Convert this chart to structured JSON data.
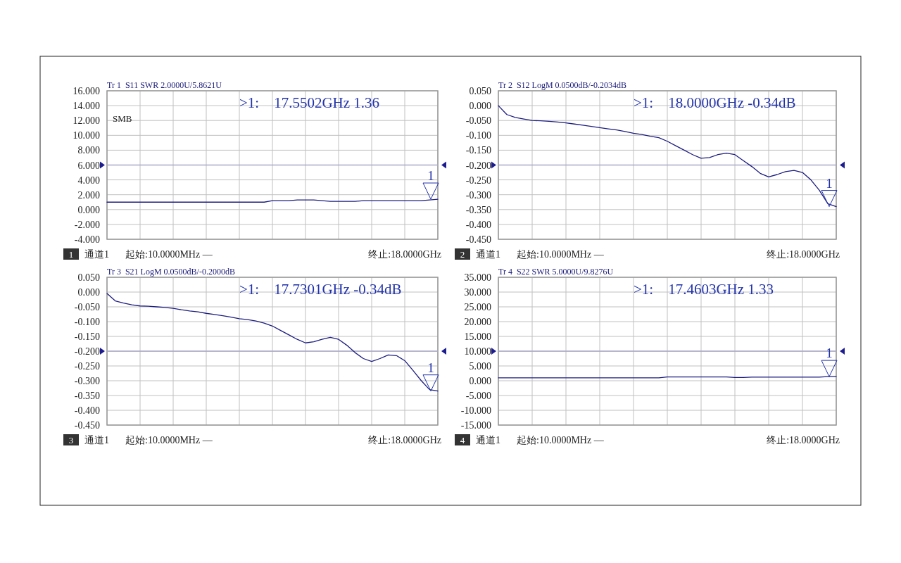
{
  "chart_data": [
    {
      "type": "line",
      "title": "Tr 1  S11 SWR 2.0000U/5.8621U",
      "grid": true,
      "categories": [
        null,
        null,
        null,
        null,
        null,
        null,
        null,
        null,
        null,
        null,
        null,
        null,
        null,
        null,
        null,
        null,
        null,
        null,
        null,
        null,
        null,
        null,
        null,
        null,
        null,
        null,
        null,
        null,
        null,
        null,
        null,
        null,
        null,
        null,
        null,
        null,
        null,
        null,
        null,
        null,
        null
      ],
      "series": [
        {
          "color": "#1c1c80",
          "values": [
            1.0,
            1.0,
            1.0,
            1.0,
            1.0,
            1.0,
            1.0,
            1.0,
            1.0,
            1.0,
            1.0,
            1.0,
            1.0,
            1.0,
            1.0,
            1.0,
            1.0,
            1.0,
            1.0,
            1.0,
            1.2,
            1.2,
            1.2,
            1.3,
            1.3,
            1.3,
            1.2,
            1.1,
            1.1,
            1.1,
            1.1,
            1.2,
            1.2,
            1.2,
            1.2,
            1.2,
            1.2,
            1.2,
            1.2,
            1.3,
            1.4
          ]
        }
      ],
      "ylim": [
        -4,
        16
      ],
      "yticks": [
        {
          "value": -4,
          "label": "-4.000"
        },
        {
          "value": -2,
          "label": "-2.000"
        },
        {
          "value": 0,
          "label": "0.000"
        },
        {
          "value": 2,
          "label": "2.000"
        },
        {
          "value": 4,
          "label": "4.000"
        },
        {
          "value": 6,
          "label": "6.000"
        },
        {
          "value": 8,
          "label": "8.000"
        },
        {
          "value": 10,
          "label": "10.000"
        },
        {
          "value": 12,
          "label": "12.000"
        },
        {
          "value": 14,
          "label": "14.000"
        },
        {
          "value": 16,
          "label": "16.000"
        }
      ],
      "ref_lines": [
        {
          "axis": "y",
          "value": 6,
          "color": "#a8a8c8"
        }
      ],
      "annotations": [
        ">1:    17.5502GHz 1.36",
        "1",
        "通道1",
        "起始:10.0000MHz —",
        "终止:18.0000GHz",
        "1",
        "SMB"
      ]
    },
    {
      "type": "line",
      "title": "Tr 2  S12 LogM 0.0500dB/-0.2034dB",
      "grid": true,
      "categories": [
        null,
        null,
        null,
        null,
        null,
        null,
        null,
        null,
        null,
        null,
        null,
        null,
        null,
        null,
        null,
        null,
        null,
        null,
        null,
        null,
        null,
        null,
        null,
        null,
        null,
        null,
        null,
        null,
        null,
        null,
        null,
        null,
        null,
        null,
        null,
        null,
        null,
        null,
        null,
        null,
        null
      ],
      "series": [
        {
          "color": "#1c1c80",
          "values": [
            0.0,
            -0.03,
            -0.04,
            -0.045,
            -0.05,
            -0.051,
            -0.053,
            -0.055,
            -0.058,
            -0.062,
            -0.066,
            -0.07,
            -0.074,
            -0.078,
            -0.082,
            -0.087,
            -0.093,
            -0.097,
            -0.103,
            -0.108,
            -0.12,
            -0.135,
            -0.15,
            -0.165,
            -0.177,
            -0.175,
            -0.165,
            -0.16,
            -0.165,
            -0.185,
            -0.205,
            -0.228,
            -0.24,
            -0.232,
            -0.222,
            -0.218,
            -0.225,
            -0.25,
            -0.285,
            -0.33,
            -0.34
          ]
        }
      ],
      "ylim": [
        -0.45,
        0.05
      ],
      "yticks": [
        {
          "value": -0.45,
          "label": "-0.450"
        },
        {
          "value": -0.4,
          "label": "-0.400"
        },
        {
          "value": -0.35,
          "label": "-0.350"
        },
        {
          "value": -0.3,
          "label": "-0.300"
        },
        {
          "value": -0.25,
          "label": "-0.250"
        },
        {
          "value": -0.2,
          "label": "-0.200"
        },
        {
          "value": -0.15,
          "label": "-0.150"
        },
        {
          "value": -0.1,
          "label": "-0.100"
        },
        {
          "value": -0.05,
          "label": "-0.050"
        },
        {
          "value": 0,
          "label": "0.000"
        },
        {
          "value": 0.05,
          "label": "0.050"
        }
      ],
      "ref_lines": [
        {
          "axis": "y",
          "value": -0.2,
          "color": "#a8a8c8"
        }
      ],
      "annotations": [
        ">1:    18.0000GHz -0.34dB",
        "2",
        "通道1",
        "起始:10.0000MHz —",
        "终止:18.0000GHz",
        "1"
      ]
    },
    {
      "type": "line",
      "title": "Tr 3  S21 LogM 0.0500dB/-0.2000dB",
      "grid": true,
      "categories": [
        null,
        null,
        null,
        null,
        null,
        null,
        null,
        null,
        null,
        null,
        null,
        null,
        null,
        null,
        null,
        null,
        null,
        null,
        null,
        null,
        null,
        null,
        null,
        null,
        null,
        null,
        null,
        null,
        null,
        null,
        null,
        null,
        null,
        null,
        null,
        null,
        null,
        null,
        null,
        null,
        null
      ],
      "series": [
        {
          "color": "#1c1c80",
          "values": [
            -0.005,
            -0.03,
            -0.037,
            -0.043,
            -0.047,
            -0.048,
            -0.05,
            -0.052,
            -0.055,
            -0.06,
            -0.064,
            -0.067,
            -0.072,
            -0.076,
            -0.08,
            -0.085,
            -0.09,
            -0.093,
            -0.098,
            -0.105,
            -0.115,
            -0.13,
            -0.145,
            -0.16,
            -0.172,
            -0.168,
            -0.16,
            -0.153,
            -0.16,
            -0.18,
            -0.205,
            -0.225,
            -0.235,
            -0.225,
            -0.213,
            -0.215,
            -0.232,
            -0.265,
            -0.3,
            -0.33,
            -0.335
          ]
        }
      ],
      "ylim": [
        -0.45,
        0.05
      ],
      "yticks": [
        {
          "value": -0.45,
          "label": "-0.450"
        },
        {
          "value": -0.4,
          "label": "-0.400"
        },
        {
          "value": -0.35,
          "label": "-0.350"
        },
        {
          "value": -0.3,
          "label": "-0.300"
        },
        {
          "value": -0.25,
          "label": "-0.250"
        },
        {
          "value": -0.2,
          "label": "-0.200"
        },
        {
          "value": -0.15,
          "label": "-0.150"
        },
        {
          "value": -0.1,
          "label": "-0.100"
        },
        {
          "value": -0.05,
          "label": "-0.050"
        },
        {
          "value": 0,
          "label": "0.000"
        },
        {
          "value": 0.05,
          "label": "0.050"
        }
      ],
      "ref_lines": [
        {
          "axis": "y",
          "value": -0.2,
          "color": "#a8a8c8"
        }
      ],
      "annotations": [
        ">1:    17.7301GHz -0.34dB",
        "3",
        "通道1",
        "起始:10.0000MHz —",
        "终止:18.0000GHz",
        "1"
      ]
    },
    {
      "type": "line",
      "title": "Tr 4  S22 SWR 5.0000U/9.8276U",
      "grid": true,
      "categories": [
        null,
        null,
        null,
        null,
        null,
        null,
        null,
        null,
        null,
        null,
        null,
        null,
        null,
        null,
        null,
        null,
        null,
        null,
        null,
        null,
        null,
        null,
        null,
        null,
        null,
        null,
        null,
        null,
        null,
        null,
        null,
        null,
        null,
        null,
        null,
        null,
        null,
        null,
        null,
        null,
        null
      ],
      "series": [
        {
          "color": "#1c1c80",
          "values": [
            1.0,
            1.0,
            1.0,
            1.0,
            1.0,
            1.0,
            1.0,
            1.0,
            1.0,
            1.0,
            1.0,
            1.0,
            1.0,
            1.0,
            1.0,
            1.0,
            1.0,
            1.0,
            1.0,
            1.0,
            1.3,
            1.3,
            1.3,
            1.3,
            1.3,
            1.3,
            1.3,
            1.3,
            1.1,
            1.1,
            1.2,
            1.2,
            1.2,
            1.2,
            1.2,
            1.2,
            1.2,
            1.2,
            1.2,
            1.4,
            1.4
          ]
        }
      ],
      "ylim": [
        -15,
        35
      ],
      "yticks": [
        {
          "value": -15,
          "label": "-15.000"
        },
        {
          "value": -10,
          "label": "-10.000"
        },
        {
          "value": -5,
          "label": "-5.000"
        },
        {
          "value": 0,
          "label": "0.000"
        },
        {
          "value": 5,
          "label": "5.000"
        },
        {
          "value": 10,
          "label": "10.000"
        },
        {
          "value": 15,
          "label": "15.000"
        },
        {
          "value": 20,
          "label": "20.000"
        },
        {
          "value": 25,
          "label": "25.000"
        },
        {
          "value": 30,
          "label": "30.000"
        },
        {
          "value": 35,
          "label": "35.000"
        }
      ],
      "ref_lines": [
        {
          "axis": "y",
          "value": 10,
          "color": "#a8a8c8"
        }
      ],
      "annotations": [
        ">1:    17.4603GHz 1.33",
        "4",
        "通道1",
        "起始:10.0000MHz —",
        "终止:18.0000GHz",
        "1"
      ]
    }
  ]
}
